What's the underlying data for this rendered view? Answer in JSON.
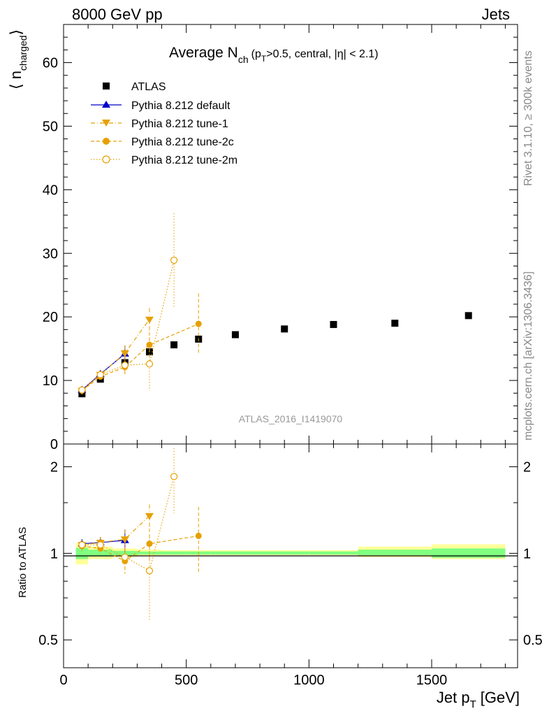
{
  "header": {
    "left": "8000 GeV pp",
    "right": "Jets"
  },
  "side_text": {
    "rivet": "Rivet 3.1.10, ≥ 300k events",
    "mcplots": "mcplots.cern.ch [arXiv:1306.3436]"
  },
  "watermark": "ATLAS_2016_I1419070",
  "colors": {
    "atlas": "#000000",
    "default": "#0000c8",
    "tune": "#e6a000",
    "band_inner": "#80ff80",
    "band_outer": "#ffff99",
    "ratio_line": "#000000"
  },
  "chart_data": [
    {
      "type": "scatter",
      "panel": "main",
      "title_main": "Average N",
      "title_sub": "ch",
      "title_rest": "(p",
      "title_sub2": "T",
      "title_end": ">0.5, central, |η| < 2.1)",
      "ylabel": "⟨ n",
      "ylabel_sub": "charged",
      "ylabel_close": "⟩",
      "xlim": [
        0,
        1850
      ],
      "ylim": [
        0,
        66
      ],
      "yticks": [
        0,
        10,
        20,
        30,
        40,
        50,
        60
      ],
      "ytick_labels": [
        "0",
        "10",
        "20",
        "30",
        "40",
        "50",
        "60"
      ],
      "legend_position": "top-left",
      "series": [
        {
          "name": "ATLAS",
          "marker": "square",
          "x": [
            75,
            150,
            250,
            350,
            450,
            550,
            700,
            900,
            1100,
            1350,
            1650
          ],
          "y": [
            7.9,
            10.2,
            12.8,
            14.5,
            15.6,
            16.5,
            17.2,
            18.1,
            18.8,
            19.0,
            20.2
          ]
        },
        {
          "name": "Pythia 8.212 default",
          "marker": "triangle-up",
          "style": "solid",
          "x": [
            75,
            150,
            250
          ],
          "y": [
            8.5,
            11.0,
            14.2
          ],
          "err": [
            0.4,
            0.6,
            1.3
          ]
        },
        {
          "name": "Pythia 8.212 tune-1",
          "marker": "triangle-down",
          "style": "dashdot",
          "x": [
            75,
            150,
            250,
            350
          ],
          "y": [
            8.4,
            10.9,
            14.3,
            19.6
          ],
          "err": [
            0.4,
            0.5,
            1.2,
            1.8
          ]
        },
        {
          "name": "Pythia 8.212 tune-2c",
          "marker": "circle",
          "style": "dashed",
          "x": [
            75,
            150,
            250,
            350,
            550
          ],
          "y": [
            8.4,
            10.6,
            12.1,
            15.6,
            18.9
          ],
          "err": [
            0.4,
            0.5,
            1.2,
            2.0,
            4.8
          ]
        },
        {
          "name": "Pythia 8.212 tune-2m",
          "marker": "open-circle",
          "style": "dotted",
          "x": [
            75,
            150,
            250,
            350,
            450
          ],
          "y": [
            8.5,
            10.9,
            12.4,
            12.6,
            28.9
          ],
          "err": [
            0.4,
            0.6,
            1.4,
            4.2,
            7.4
          ]
        }
      ]
    },
    {
      "type": "scatter",
      "panel": "ratio",
      "ylabel": "Ratio to ATLAS",
      "xlabel": "Jet p",
      "xlabel_sub": "T",
      "xlabel_unit": "[GeV]",
      "xlim": [
        0,
        1850
      ],
      "ylim": [
        0.4,
        2.4
      ],
      "yticks": [
        0.5,
        1,
        2
      ],
      "ytick_labels": [
        "0.5",
        "1",
        "2"
      ],
      "xticks": [
        0,
        500,
        1000,
        1500
      ],
      "xtick_labels": [
        "0",
        "500",
        "1000",
        "1500"
      ],
      "band_bins": [
        [
          50,
          100
        ],
        [
          100,
          200
        ],
        [
          200,
          300
        ],
        [
          300,
          400
        ],
        [
          400,
          500
        ],
        [
          500,
          600
        ],
        [
          600,
          800
        ],
        [
          800,
          1000
        ],
        [
          1000,
          1200
        ],
        [
          1200,
          1500
        ],
        [
          1500,
          1800
        ]
      ],
      "band_inner": [
        [
          0.955,
          1.045
        ],
        [
          0.975,
          1.03
        ],
        [
          0.985,
          1.02
        ],
        [
          0.99,
          1.015
        ],
        [
          0.99,
          1.015
        ],
        [
          0.99,
          1.015
        ],
        [
          0.99,
          1.015
        ],
        [
          0.99,
          1.015
        ],
        [
          0.99,
          1.015
        ],
        [
          0.985,
          1.03
        ],
        [
          0.965,
          1.04
        ]
      ],
      "band_outer": [
        [
          0.915,
          1.085
        ],
        [
          0.955,
          1.055
        ],
        [
          0.97,
          1.04
        ],
        [
          0.98,
          1.03
        ],
        [
          0.985,
          1.025
        ],
        [
          0.985,
          1.025
        ],
        [
          0.985,
          1.025
        ],
        [
          0.985,
          1.025
        ],
        [
          0.985,
          1.025
        ],
        [
          0.97,
          1.055
        ],
        [
          0.955,
          1.075
        ]
      ],
      "series": [
        {
          "name": "Pythia 8.212 default",
          "marker": "triangle-up",
          "style": "solid",
          "x": [
            75,
            150,
            250
          ],
          "y": [
            1.08,
            1.09,
            1.11
          ],
          "err": [
            0.04,
            0.05,
            0.1
          ]
        },
        {
          "name": "Pythia 8.212 tune-1",
          "marker": "triangle-down",
          "style": "dashdot",
          "x": [
            75,
            150,
            250,
            350
          ],
          "y": [
            1.07,
            1.09,
            1.12,
            1.35
          ],
          "err": [
            0.04,
            0.05,
            0.09,
            0.13
          ]
        },
        {
          "name": "Pythia 8.212 tune-2c",
          "marker": "circle",
          "style": "dashed",
          "x": [
            75,
            150,
            250,
            350,
            550
          ],
          "y": [
            1.06,
            1.04,
            0.94,
            1.08,
            1.15
          ],
          "err": [
            0.04,
            0.05,
            0.09,
            0.14,
            0.3
          ]
        },
        {
          "name": "Pythia 8.212 tune-2m",
          "marker": "open-circle",
          "style": "dotted",
          "x": [
            75,
            150,
            250,
            350,
            450
          ],
          "y": [
            1.07,
            1.07,
            0.97,
            0.87,
            1.85
          ],
          "err": [
            0.04,
            0.06,
            0.11,
            0.29,
            0.47
          ]
        }
      ]
    }
  ]
}
